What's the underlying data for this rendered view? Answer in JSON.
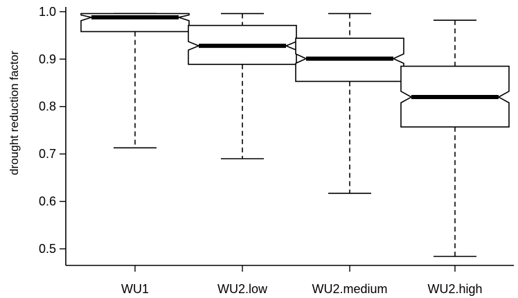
{
  "chart_data": {
    "type": "boxplot",
    "notched": true,
    "ylabel": "drought reduction factor",
    "xlabel": "",
    "ylim": [
      0.465,
      1.01
    ],
    "yticks": [
      0.5,
      0.6,
      0.7,
      0.8,
      0.9,
      1.0
    ],
    "ytick_labels": [
      "0.5",
      "0.6",
      "0.7",
      "0.8",
      "0.9",
      "1.0"
    ],
    "categories": [
      "WU1",
      "WU2.low",
      "WU2.medium",
      "WU2.high"
    ],
    "boxes": [
      {
        "category": "WU1",
        "whisker_low": 0.713,
        "q1": 0.958,
        "median": 0.988,
        "q3": 0.996,
        "whisker_high": 0.996,
        "notch_low": 0.981,
        "notch_high": 0.993
      },
      {
        "category": "WU2.low",
        "whisker_low": 0.69,
        "q1": 0.889,
        "median": 0.928,
        "q3": 0.971,
        "whisker_high": 0.996,
        "notch_low": 0.919,
        "notch_high": 0.937
      },
      {
        "category": "WU2.medium",
        "whisker_low": 0.617,
        "q1": 0.853,
        "median": 0.901,
        "q3": 0.944,
        "whisker_high": 0.996,
        "notch_low": 0.891,
        "notch_high": 0.911
      },
      {
        "category": "WU2.high",
        "whisker_low": 0.484,
        "q1": 0.757,
        "median": 0.82,
        "q3": 0.885,
        "whisker_high": 0.982,
        "notch_low": 0.808,
        "notch_high": 0.832
      }
    ],
    "grid": false,
    "legend": "none"
  }
}
